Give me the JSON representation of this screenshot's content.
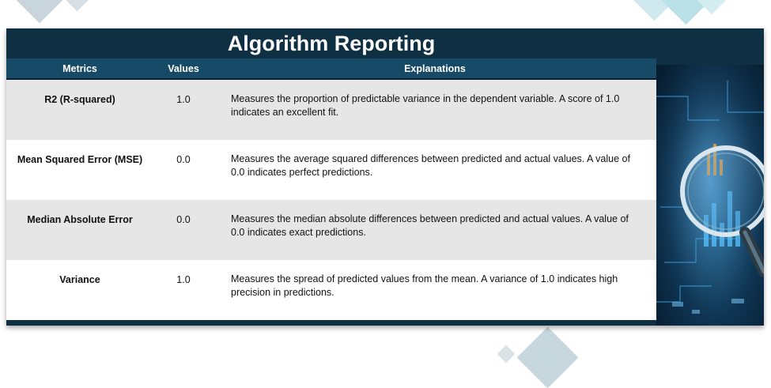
{
  "title": "Algorithm Reporting",
  "table": {
    "headers": [
      "Metrics",
      "Values",
      "Explanations"
    ],
    "rows": [
      {
        "metric": "R2 (R-squared)",
        "value": "1.0",
        "explanation": "Measures the proportion of predictable variance in the dependent variable. A score of 1.0 indicates an excellent fit."
      },
      {
        "metric": "Mean Squared Error (MSE)",
        "value": "0.0",
        "explanation": "Measures the average squared differences between predicted and actual values. A value of 0.0 indicates perfect predictions."
      },
      {
        "metric": "Median Absolute Error",
        "value": "0.0",
        "explanation": "Measures the median absolute differences between predicted and actual values. A value of 0.0 indicates exact predictions."
      },
      {
        "metric": "Variance",
        "value": "1.0",
        "explanation": "Measures the spread of predicted values from the mean. A variance of 1.0 indicates high precision in predictions."
      }
    ]
  },
  "image": {
    "icon": "magnifying-glass-data-icon"
  },
  "colors": {
    "panel": "#0f2f42",
    "header": "#164a66",
    "row_alt": "#e6e6e6"
  }
}
